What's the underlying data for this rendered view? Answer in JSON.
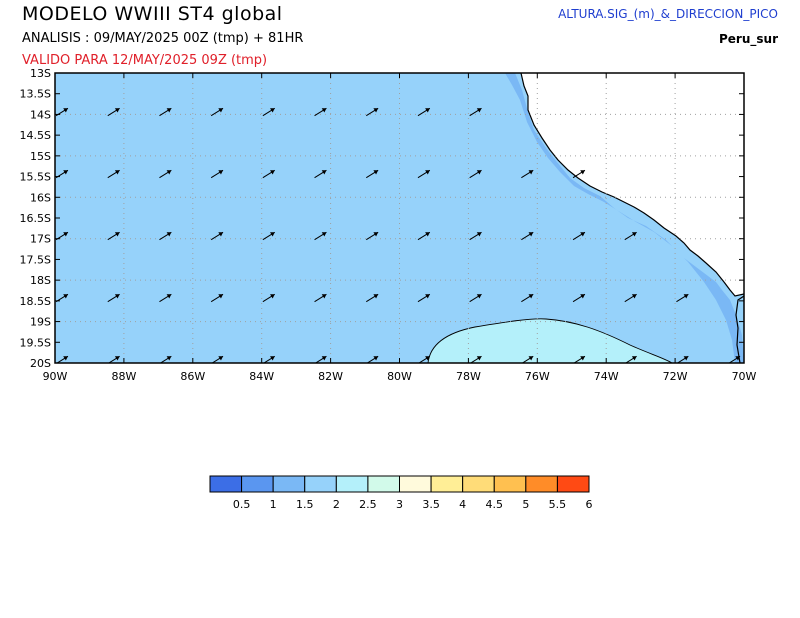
{
  "header": {
    "title": "MODELO WWIII ST4 global",
    "analysis": "ANALISIS : 09/MAY/2025 00Z  (tmp) + 81HR",
    "valid": "VALIDO PARA  12/MAY/2025 09Z  (tmp)",
    "variable": "ALTURA.SIG_(m)_&_DIRECCION_PICO",
    "region": "Peru_sur"
  },
  "map": {
    "lat_labels": [
      "13S",
      "13.5S",
      "14S",
      "14.5S",
      "15S",
      "15.5S",
      "16S",
      "16.5S",
      "17S",
      "17.5S",
      "18S",
      "18.5S",
      "19S",
      "19.5S",
      "20S"
    ],
    "lon_labels": [
      "90W",
      "88W",
      "86W",
      "84W",
      "82W",
      "80W",
      "78W",
      "76W",
      "74W",
      "72W",
      "70W"
    ],
    "colors": {
      "band_1_1_5": "#7ab8f5",
      "band_1_5_2": "#96d2fa",
      "band_2_2_5": "#b4f0fa",
      "land": "#ffffff",
      "coast": "#000000",
      "grid": "#a0a0a0",
      "arrow": "#000000"
    },
    "arrow_icon": "wave-direction-arrow-icon"
  },
  "colorbar": {
    "labels": [
      "0.5",
      "1",
      "1.5",
      "2",
      "2.5",
      "3",
      "3.5",
      "4",
      "4.5",
      "5",
      "5.5",
      "6"
    ],
    "colors": [
      "#3c6ee6",
      "#5a96f0",
      "#7ab8f5",
      "#96d2fa",
      "#b4f0fa",
      "#d2faea",
      "#fffadc",
      "#ffee96",
      "#ffdc78",
      "#ffc050",
      "#ff8c28",
      "#ff4a14"
    ]
  }
}
